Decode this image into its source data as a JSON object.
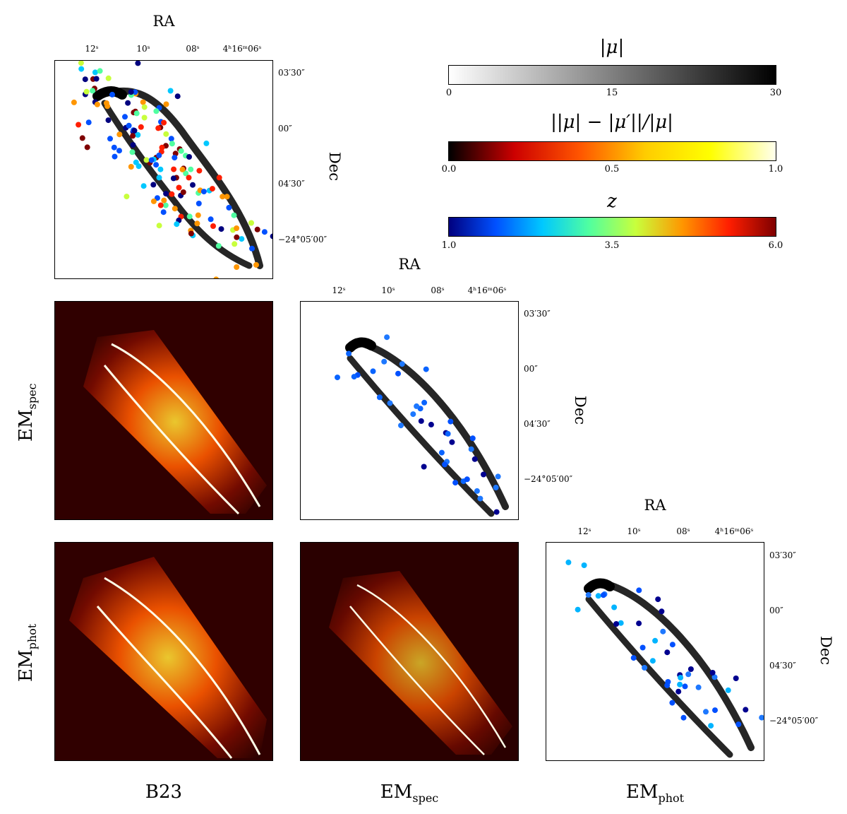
{
  "axes": {
    "ra_title": "RA",
    "dec_title": "Dec",
    "ra_ticks": [
      "12ˢ",
      "10ˢ",
      "08ˢ",
      "4ʰ16ᵐ06ˢ"
    ],
    "dec_ticks": [
      "03′30″",
      "00″",
      "04′30″",
      "−24°05′00″"
    ]
  },
  "row_labels": [
    "EM",
    "spec",
    "EM",
    "phot"
  ],
  "column_labels": [
    "B23",
    "EM",
    "spec",
    "EM",
    "phot"
  ],
  "colorbars": [
    {
      "title": "|μ|",
      "ticks": [
        "0",
        "15",
        "30"
      ],
      "gradient": [
        "#ffffff",
        "#000000"
      ]
    },
    {
      "title": "||μ| − |μ′||/|μ|",
      "ticks": [
        "0.0",
        "0.5",
        "1.0"
      ],
      "gradient": [
        "#000000",
        "#cc0000",
        "#ff5500",
        "#ffcc00",
        "#ffff00",
        "#ffffee"
      ]
    },
    {
      "title": "z",
      "ticks": [
        "1.0",
        "3.5",
        "6.0"
      ],
      "gradient": [
        "#00007f",
        "#0050ff",
        "#00c8ff",
        "#50ffa0",
        "#c8ff3c",
        "#ff9600",
        "#ff1e00",
        "#7f0000"
      ]
    }
  ],
  "panels": {
    "b23_magnification": "magnification map with multiple images colored by redshift z",
    "em_spec_magnification": "magnification map with spectroscopic images",
    "em_phot_magnification": "magnification map with photometric images"
  }
}
